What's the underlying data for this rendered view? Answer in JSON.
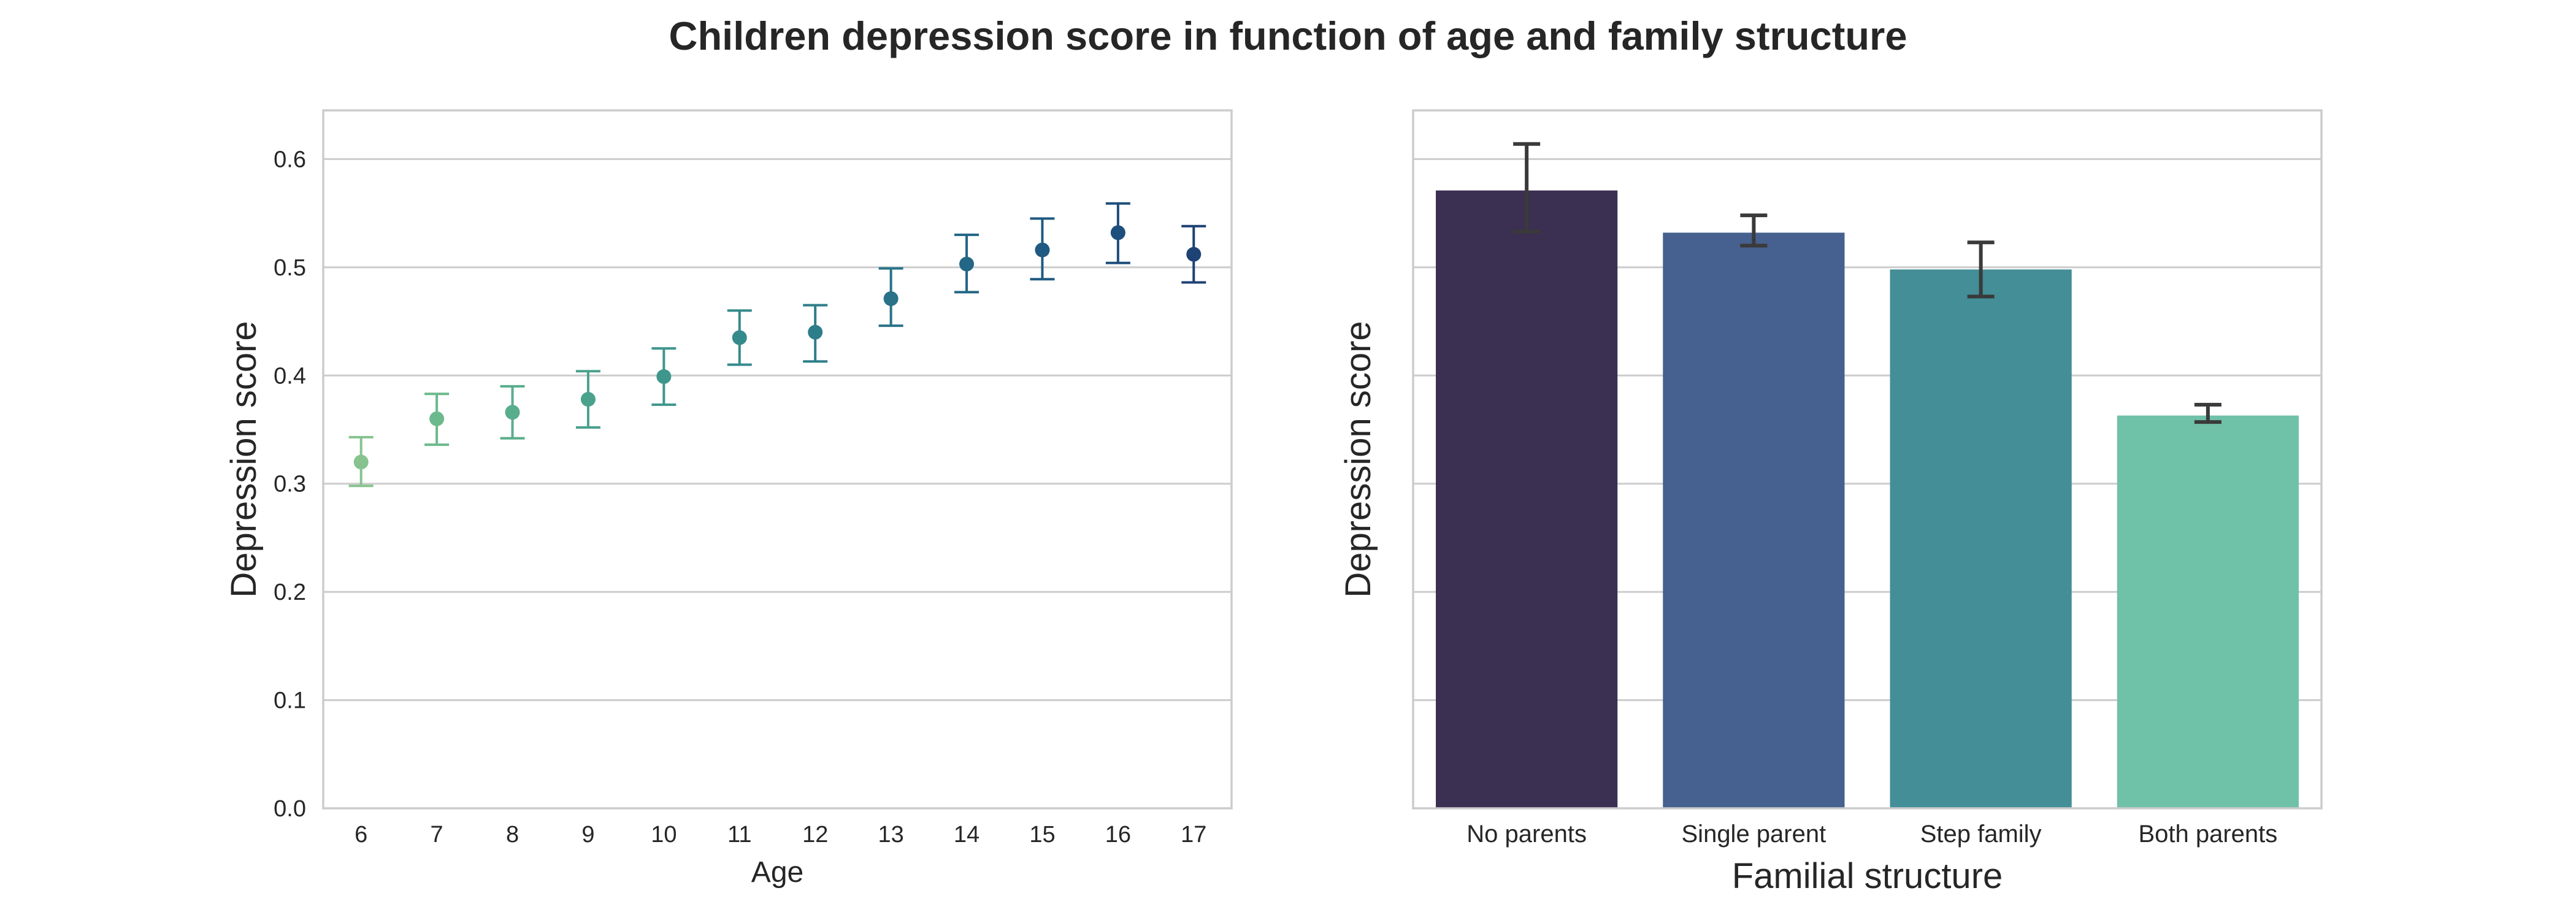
{
  "title": "Children depression score in function of age and family structure",
  "colors": {
    "background": "#ffffff",
    "grid": "#cccccc",
    "frame": "#cccccc",
    "text": "#262626",
    "errorbar": "#3a3a3a"
  },
  "chart_data": [
    {
      "type": "scatter",
      "title": "",
      "xlabel": "Age",
      "ylabel": "Depression score",
      "ylim": [
        0.0,
        0.645
      ],
      "yticks": [
        "0.0",
        "0.1",
        "0.2",
        "0.3",
        "0.4",
        "0.5",
        "0.6"
      ],
      "grid": "horizontal",
      "categories": [
        "6",
        "7",
        "8",
        "9",
        "10",
        "11",
        "12",
        "13",
        "14",
        "15",
        "16",
        "17"
      ],
      "values": [
        0.32,
        0.36,
        0.366,
        0.378,
        0.399,
        0.435,
        0.44,
        0.471,
        0.503,
        0.516,
        0.532,
        0.512
      ],
      "error_low": [
        0.298,
        0.336,
        0.342,
        0.352,
        0.373,
        0.41,
        0.413,
        0.446,
        0.477,
        0.489,
        0.504,
        0.486
      ],
      "error_high": [
        0.343,
        0.383,
        0.39,
        0.404,
        0.425,
        0.46,
        0.465,
        0.499,
        0.53,
        0.545,
        0.559,
        0.538
      ],
      "colors": [
        "#86c38e",
        "#6bb98c",
        "#58ad8c",
        "#4aa28d",
        "#3f968d",
        "#358a8c",
        "#2e7e8a",
        "#297288",
        "#236685",
        "#1f5a82",
        "#1d4e7c",
        "#1e4274"
      ]
    },
    {
      "type": "bar",
      "title": "",
      "xlabel": "Familial structure",
      "ylabel": "Depression score",
      "ylim": [
        0.0,
        0.645
      ],
      "grid": "horizontal",
      "categories": [
        "No parents",
        "Single parent",
        "Step family",
        "Both parents"
      ],
      "values": [
        0.571,
        0.532,
        0.498,
        0.363
      ],
      "error_low": [
        0.533,
        0.52,
        0.473,
        0.357
      ],
      "error_high": [
        0.614,
        0.548,
        0.523,
        0.373
      ],
      "colors": [
        "#3b2f52",
        "#46608f",
        "#438e97",
        "#6fc1a8"
      ]
    }
  ]
}
